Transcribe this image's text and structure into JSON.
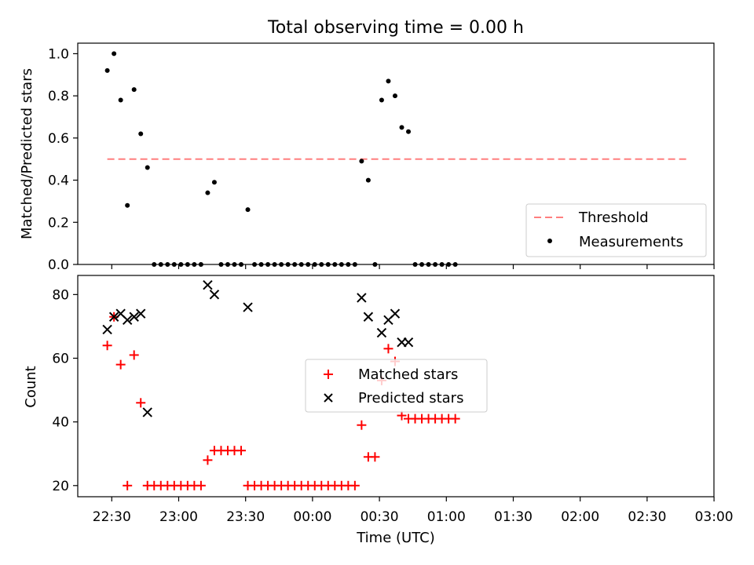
{
  "chart_data": [
    {
      "type": "scatter",
      "title": "Total observing time = 0.00 h",
      "xlabel": "",
      "ylabel": "Matched/Predicted stars",
      "ylim": [
        0,
        1.05
      ],
      "yticks": [
        "0.0",
        "0.2",
        "0.4",
        "0.6",
        "0.8",
        "1.0"
      ],
      "threshold": {
        "name": "Threshold",
        "value": 0.5,
        "x_start": "22:28",
        "x_end": "02:48",
        "color": "#ff7f7f"
      },
      "series": [
        {
          "name": "Measurements",
          "color": "#000000",
          "points": [
            [
              "22:28",
              0.92
            ],
            [
              "22:31",
              1.0
            ],
            [
              "22:34",
              0.78
            ],
            [
              "22:37",
              0.28
            ],
            [
              "22:40",
              0.83
            ],
            [
              "22:43",
              0.62
            ],
            [
              "22:46",
              0.46
            ],
            [
              "22:49",
              0.0
            ],
            [
              "22:52",
              0.0
            ],
            [
              "22:55",
              0.0
            ],
            [
              "22:58",
              0.0
            ],
            [
              "23:01",
              0.0
            ],
            [
              "23:04",
              0.0
            ],
            [
              "23:07",
              0.0
            ],
            [
              "23:10",
              0.0
            ],
            [
              "23:13",
              0.34
            ],
            [
              "23:16",
              0.39
            ],
            [
              "23:19",
              0.0
            ],
            [
              "23:22",
              0.0
            ],
            [
              "23:25",
              0.0
            ],
            [
              "23:28",
              0.0
            ],
            [
              "23:31",
              0.26
            ],
            [
              "23:34",
              0.0
            ],
            [
              "23:37",
              0.0
            ],
            [
              "23:40",
              0.0
            ],
            [
              "23:43",
              0.0
            ],
            [
              "23:46",
              0.0
            ],
            [
              "23:49",
              0.0
            ],
            [
              "23:52",
              0.0
            ],
            [
              "23:55",
              0.0
            ],
            [
              "23:58",
              0.0
            ],
            [
              "00:01",
              0.0
            ],
            [
              "00:04",
              0.0
            ],
            [
              "00:07",
              0.0
            ],
            [
              "00:10",
              0.0
            ],
            [
              "00:13",
              0.0
            ],
            [
              "00:16",
              0.0
            ],
            [
              "00:19",
              0.0
            ],
            [
              "00:22",
              0.49
            ],
            [
              "00:25",
              0.4
            ],
            [
              "00:28",
              0.0
            ],
            [
              "00:31",
              0.78
            ],
            [
              "00:34",
              0.87
            ],
            [
              "00:37",
              0.8
            ],
            [
              "00:40",
              0.65
            ],
            [
              "00:43",
              0.63
            ],
            [
              "00:46",
              0.0
            ],
            [
              "00:49",
              0.0
            ],
            [
              "00:52",
              0.0
            ],
            [
              "00:55",
              0.0
            ],
            [
              "00:58",
              0.0
            ],
            [
              "01:01",
              0.0
            ],
            [
              "01:04",
              0.0
            ]
          ]
        }
      ],
      "legend_position": "lower right",
      "grid": false
    },
    {
      "type": "scatter",
      "title": "",
      "xlabel": "Time (UTC)",
      "ylabel": "Count",
      "ylim": [
        16.5,
        86
      ],
      "yticks": [
        "20",
        "40",
        "60",
        "80"
      ],
      "xticks": [
        "22:30",
        "23:00",
        "23:30",
        "00:00",
        "00:30",
        "01:00",
        "01:30",
        "02:00",
        "02:30",
        "03:00"
      ],
      "series": [
        {
          "name": "Matched stars",
          "marker": "plus",
          "color": "#ff0000",
          "points": [
            [
              "22:28",
              64
            ],
            [
              "22:31",
              73
            ],
            [
              "22:34",
              58
            ],
            [
              "22:37",
              20
            ],
            [
              "22:40",
              61
            ],
            [
              "22:43",
              46
            ],
            [
              "22:46",
              20
            ],
            [
              "22:49",
              20
            ],
            [
              "22:52",
              20
            ],
            [
              "22:55",
              20
            ],
            [
              "22:58",
              20
            ],
            [
              "23:01",
              20
            ],
            [
              "23:04",
              20
            ],
            [
              "23:07",
              20
            ],
            [
              "23:10",
              20
            ],
            [
              "23:13",
              28
            ],
            [
              "23:16",
              31
            ],
            [
              "23:19",
              31
            ],
            [
              "23:22",
              31
            ],
            [
              "23:25",
              31
            ],
            [
              "23:28",
              31
            ],
            [
              "23:31",
              20
            ],
            [
              "23:34",
              20
            ],
            [
              "23:37",
              20
            ],
            [
              "23:40",
              20
            ],
            [
              "23:43",
              20
            ],
            [
              "23:46",
              20
            ],
            [
              "23:49",
              20
            ],
            [
              "23:52",
              20
            ],
            [
              "23:55",
              20
            ],
            [
              "23:58",
              20
            ],
            [
              "00:01",
              20
            ],
            [
              "00:04",
              20
            ],
            [
              "00:07",
              20
            ],
            [
              "00:10",
              20
            ],
            [
              "00:13",
              20
            ],
            [
              "00:16",
              20
            ],
            [
              "00:19",
              20
            ],
            [
              "00:22",
              39
            ],
            [
              "00:25",
              29
            ],
            [
              "00:28",
              29
            ],
            [
              "00:31",
              53
            ],
            [
              "00:34",
              63
            ],
            [
              "00:37",
              59
            ],
            [
              "00:40",
              42
            ],
            [
              "00:43",
              41
            ],
            [
              "00:46",
              41
            ],
            [
              "00:49",
              41
            ],
            [
              "00:52",
              41
            ],
            [
              "00:55",
              41
            ],
            [
              "00:58",
              41
            ],
            [
              "01:01",
              41
            ],
            [
              "01:04",
              41
            ]
          ]
        },
        {
          "name": "Predicted stars",
          "marker": "x",
          "color": "#000000",
          "points": [
            [
              "22:28",
              69
            ],
            [
              "22:31",
              73
            ],
            [
              "22:34",
              74
            ],
            [
              "22:37",
              72
            ],
            [
              "22:40",
              73
            ],
            [
              "22:43",
              74
            ],
            [
              "22:46",
              43
            ],
            [
              "23:13",
              83
            ],
            [
              "23:16",
              80
            ],
            [
              "23:31",
              76
            ],
            [
              "00:22",
              79
            ],
            [
              "00:25",
              73
            ],
            [
              "00:31",
              68
            ],
            [
              "00:34",
              72
            ],
            [
              "00:37",
              74
            ],
            [
              "00:40",
              65
            ],
            [
              "00:43",
              65
            ]
          ]
        }
      ],
      "legend_position": "center",
      "grid": false
    }
  ]
}
